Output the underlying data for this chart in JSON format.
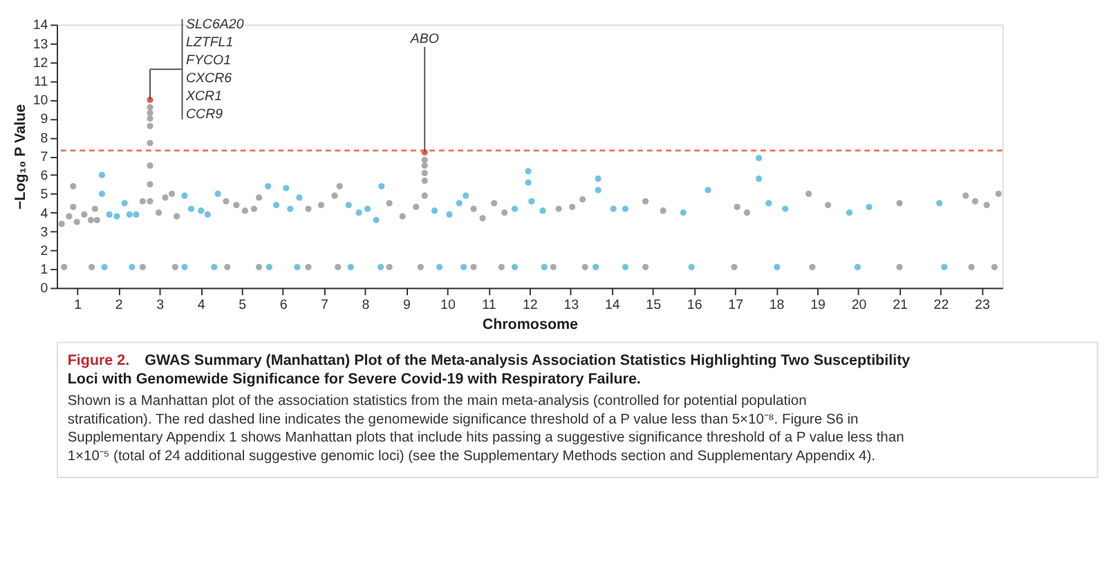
{
  "chart_data": {
    "type": "scatter",
    "title": "Figure 2. GWAS Summary (Manhattan) Plot of the Meta-analysis Association Statistics Highlighting Two Susceptibility Loci with Genomewide Significance for Severe Covid-19 with Respiratory Failure.",
    "xlabel": "Chromosome",
    "ylabel": "−Log₁₀ P Value",
    "series": [
      {
        "color": "#a9a9a9",
        "x": [
          0.62,
          0.8,
          0.9,
          0.9,
          0.99,
          1.17,
          1.33,
          1.43,
          1.48,
          0.68,
          1.35,
          2.59,
          2.77,
          2.77,
          2.77,
          2.77,
          2.77,
          2.77,
          2.77,
          2.77,
          2.98,
          3.14,
          3.3,
          3.42,
          2.59,
          3.38,
          4.62,
          4.87,
          5.08,
          5.3,
          5.42,
          4.65,
          5.42,
          6.62,
          6.93,
          7.26,
          7.38,
          6.62,
          7.34,
          8.59,
          8.91,
          9.24,
          9.45,
          9.45,
          9.45,
          9.45,
          9.45,
          8.59,
          9.35,
          10.64,
          10.86,
          11.14,
          11.39,
          10.64,
          11.32,
          12.71,
          13.04,
          13.29,
          12.58,
          13.35,
          14.82,
          15.25,
          14.82,
          17.05,
          17.29,
          16.98,
          18.79,
          19.26,
          18.88,
          21.0,
          21.0,
          22.61,
          22.84,
          23.12,
          23.41,
          22.75,
          23.31
        ],
        "values": [
          3.4,
          3.8,
          5.4,
          4.3,
          3.5,
          3.9,
          3.6,
          4.2,
          3.6,
          1.1,
          1.1,
          4.6,
          9.6,
          9.3,
          9.0,
          8.6,
          7.7,
          6.5,
          5.5,
          4.6,
          4.0,
          4.8,
          5.0,
          3.8,
          1.1,
          1.1,
          4.6,
          4.4,
          4.1,
          4.2,
          4.8,
          1.1,
          1.1,
          4.2,
          4.4,
          4.9,
          5.4,
          1.1,
          1.1,
          4.5,
          3.8,
          4.3,
          6.8,
          6.5,
          6.1,
          5.7,
          4.9,
          1.1,
          1.1,
          4.2,
          3.7,
          4.5,
          4.0,
          1.1,
          1.1,
          4.2,
          4.3,
          4.7,
          1.1,
          1.1,
          4.6,
          4.1,
          1.1,
          4.3,
          4.0,
          1.1,
          5.0,
          4.4,
          1.1,
          4.5,
          1.1,
          4.9,
          4.6,
          4.4,
          5.0,
          1.1,
          1.1
        ]
      },
      {
        "color": "#6ec3e4",
        "x": [
          1.6,
          1.6,
          1.78,
          1.96,
          2.15,
          2.27,
          2.43,
          1.66,
          2.33,
          3.61,
          3.77,
          4.01,
          4.17,
          4.42,
          3.61,
          4.33,
          5.64,
          5.84,
          6.08,
          6.18,
          6.4,
          5.67,
          6.35,
          7.6,
          7.85,
          8.06,
          8.4,
          8.27,
          7.65,
          8.38,
          9.69,
          10.05,
          10.29,
          10.45,
          9.81,
          10.4,
          11.64,
          11.97,
          11.97,
          12.05,
          12.32,
          11.64,
          12.36,
          13.67,
          13.67,
          14.04,
          14.33,
          13.61,
          14.33,
          15.74,
          16.34,
          15.94,
          17.58,
          17.58,
          17.82,
          18.22,
          18.02,
          19.78,
          20.26,
          19.98,
          21.97,
          22.09
        ],
        "values": [
          6.0,
          5.0,
          3.9,
          3.8,
          4.5,
          3.9,
          3.9,
          1.1,
          1.1,
          4.9,
          4.2,
          4.1,
          3.9,
          5.0,
          1.1,
          1.1,
          5.4,
          4.4,
          5.3,
          4.2,
          4.8,
          1.1,
          1.1,
          4.4,
          4.0,
          4.2,
          5.4,
          3.6,
          1.1,
          1.1,
          4.1,
          3.9,
          4.5,
          4.9,
          1.1,
          1.1,
          4.2,
          6.2,
          5.6,
          4.6,
          4.1,
          1.1,
          1.1,
          5.8,
          5.2,
          4.2,
          4.2,
          1.1,
          1.1,
          4.0,
          5.2,
          1.1,
          6.9,
          5.8,
          4.5,
          4.2,
          1.1,
          4.0,
          4.3,
          1.1,
          4.5,
          1.1
        ]
      },
      {
        "color": "#e0604a",
        "x": [
          2.77,
          9.45
        ],
        "values": [
          10.0,
          7.2
        ]
      }
    ],
    "xlim": [
      0.5,
      23.5
    ],
    "xticks": [
      1,
      2,
      3,
      4,
      5,
      6,
      7,
      8,
      9,
      10,
      11,
      12,
      13,
      14,
      15,
      16,
      17,
      18,
      19,
      20,
      21,
      22,
      23
    ],
    "ylim": [
      0,
      14
    ],
    "yticks": [
      0,
      1,
      2,
      3,
      4,
      5,
      6,
      7,
      8,
      9,
      10,
      11,
      12,
      13,
      14
    ],
    "ref_lines": [
      {
        "axis": "y",
        "value": 7.3,
        "color": "#e8735a",
        "line_style": "dashed"
      }
    ],
    "annotations": [
      "SLC6A20",
      "LZTFL1",
      "FYCO1",
      "CXCR6",
      "XCR1",
      "CCR9",
      {
        "text": "ABO",
        "x": 9.45,
        "y": 7.2
      },
      "Shown is a Manhattan plot of the association statistics from the main meta-analysis (controlled for potential population stratification). The red dashed line indicates the genomewide significance threshold of a P value less than 5×10⁻⁸. Figure S6 in Supplementary Appendix 1 shows Manhattan plots that include hits passing a suggestive significance threshold of a P value less than 1×10⁻⁵ (total of 24 additional suggestive genomic loci) (see the Supplementary Methods section and Supplementary Appendix 4)."
    ],
    "grid": false,
    "legend": false,
    "marker": "circle"
  }
}
